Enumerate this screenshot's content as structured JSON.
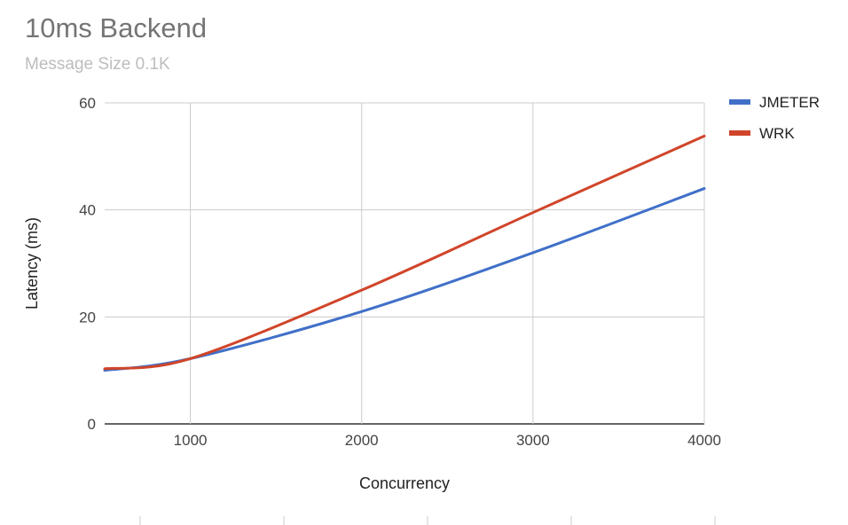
{
  "chart_data": {
    "type": "line",
    "title": "10ms Backend",
    "subtitle": "Message Size 0.1K",
    "xlabel": "Concurrency",
    "ylabel": "Latency (ms)",
    "xlim": [
      500,
      4000
    ],
    "ylim": [
      0,
      60
    ],
    "xticks": [
      1000,
      2000,
      3000,
      4000
    ],
    "yticks": [
      0,
      20,
      40,
      60
    ],
    "grid": true,
    "legend_position": "top-right",
    "series": [
      {
        "name": "JMETER",
        "color": "#4070c8",
        "x": [
          500,
          1000,
          2000,
          3000,
          4000
        ],
        "y": [
          10,
          12.2,
          21,
          32,
          44
        ]
      },
      {
        "name": "WRK",
        "color": "#d0452a",
        "x": [
          500,
          1000,
          2000,
          3000,
          4000
        ],
        "y": [
          10.3,
          12.2,
          25,
          39.5,
          53.8
        ]
      }
    ]
  }
}
